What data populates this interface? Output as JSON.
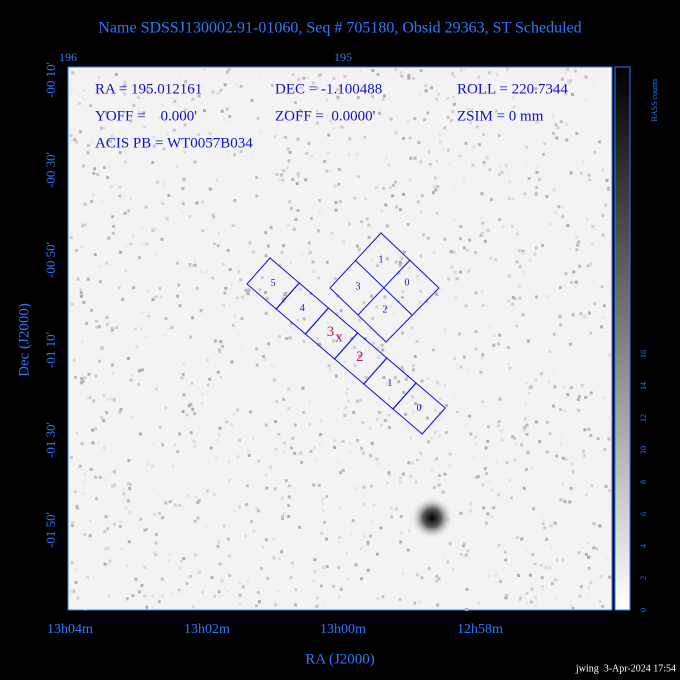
{
  "title": "Name SDSSJ130002.91-01060, Seq # 705180, Obsid 29363, ST Scheduled",
  "info": [
    "RA = 195.012161",
    "DEC = -1.100488",
    "ROLL = 220.7344",
    "YOFF =    0.000'",
    "ZOFF =  0.0000'",
    "ZSIM = 0 mm",
    "ACIS PB = WT0057B034"
  ],
  "top_axis": [
    "196",
    "195"
  ],
  "left_axis": [
    "-00 10'",
    "-00 30'",
    "-00 50'",
    "-01 10'",
    "-01 30'",
    "-01 50'"
  ],
  "bottom_axis": [
    "13h04m",
    "13h02m",
    "13h00m",
    "12h58m"
  ],
  "x_label": "RA (J2000)",
  "y_label": "Dec (J2000)",
  "colorbar": {
    "label": "RASS counts",
    "ticks": [
      "0",
      "2",
      "4",
      "6",
      "8",
      "10",
      "12",
      "14",
      "16"
    ]
  },
  "acis_i": [
    "1",
    "0",
    "3",
    "2"
  ],
  "acis_s": [
    "5",
    "4",
    "3",
    "2",
    "1",
    "0"
  ],
  "aimpoint": "x",
  "footer": "jwing  3-Apr-2024 17:54"
}
